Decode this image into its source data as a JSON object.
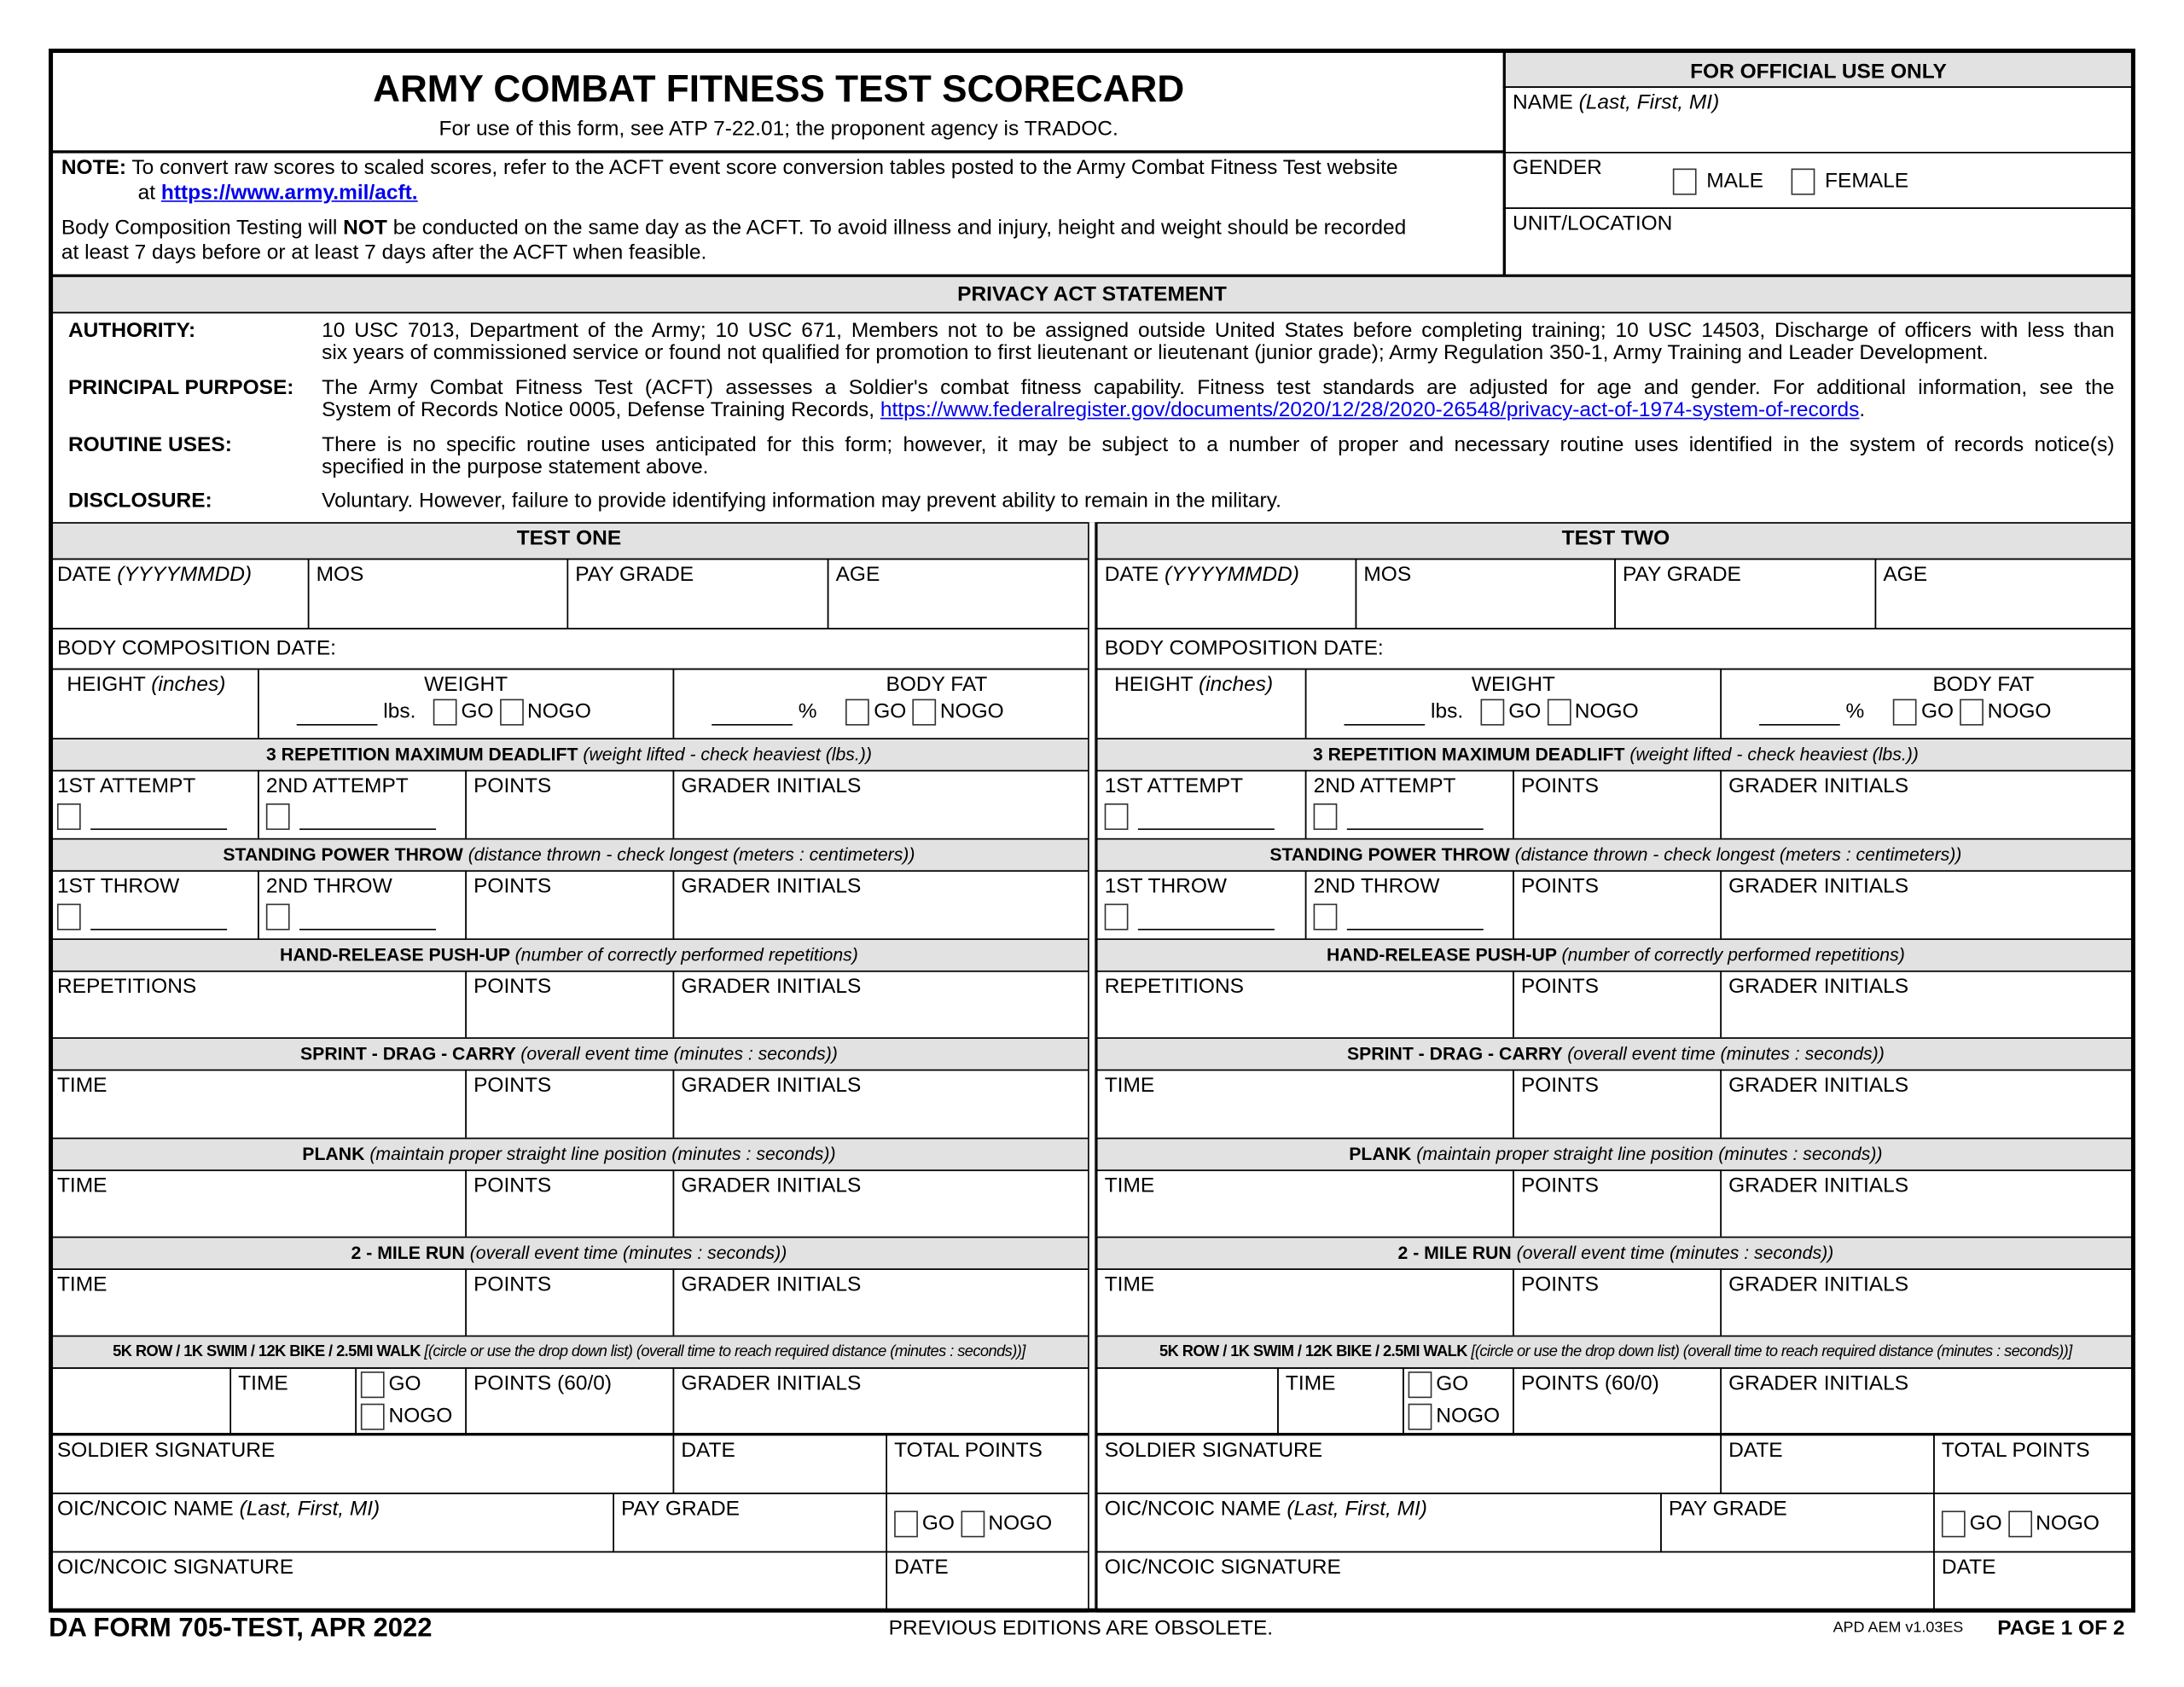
{
  "header": {
    "title": "ARMY COMBAT FITNESS TEST SCORECARD",
    "subtitle": "For use of this form, see ATP 7-22.01; the proponent agency is TRADOC.",
    "official_use": "FOR OFFICIAL USE ONLY",
    "name_label": "NAME",
    "name_hint": "(Last, First, MI)",
    "gender_label": "GENDER",
    "male_label": "MALE",
    "female_label": "FEMALE",
    "unit_label": "UNIT/LOCATION"
  },
  "note": {
    "label": "NOTE:",
    "text": "To convert raw scores to scaled scores, refer to the ACFT event score conversion tables posted to the Army Combat Fitness Test website",
    "at": "at",
    "link": "https://www.army.mil/acft.",
    "body_pre": "Body Composition Testing will",
    "body_bold": "NOT",
    "body_post": "be conducted on the same day as the ACFT. To avoid illness and injury, height and weight should be recorded",
    "body_line2": "at least 7 days before or at least 7 days after the ACFT when feasible."
  },
  "privacy": {
    "title": "PRIVACY ACT STATEMENT",
    "items": [
      {
        "label": "AUTHORITY:",
        "line1": "10 USC 7013, Department of the Army; 10 USC 671, Members not to be assigned outside United States before completing training; 10 USC 14503, Discharge of officers with less than",
        "line2": "six years of commissioned service or found not qualified for promotion to first lieutenant or lieutenant (junior grade); Army Regulation 350-1, Army Training and Leader Development."
      },
      {
        "label": "PRINCIPAL PURPOSE:",
        "line1": "The Army Combat Fitness Test (ACFT) assesses a Soldier's combat fitness capability. Fitness test standards are adjusted for age and gender. For additional information, see the",
        "line2": "System of Records Notice 0005, Defense Training Records,",
        "link": "https://www.federalregister.gov/documents/2020/12/28/2020-26548/privacy-act-of-1974-system-of-records"
      },
      {
        "label": "ROUTINE USES:",
        "line1": "There is no specific routine uses anticipated for this form; however, it may be subject to a number of proper and necessary routine uses identified in the system of records notice(s)",
        "line2": "specified in the purpose statement above."
      },
      {
        "label": "DISCLOSURE:",
        "line1": "Voluntary.  However, failure to provide identifying information may prevent ability to remain in the military.",
        "line2": ""
      }
    ]
  },
  "tests": [
    {
      "title": "TEST ONE"
    },
    {
      "title": "TEST TWO"
    }
  ],
  "labels": {
    "date": "DATE",
    "date_hint": "(YYYYMMDD)",
    "mos": "MOS",
    "pay_grade": "PAY GRADE",
    "age": "AGE",
    "bc_date": "BODY COMPOSITION DATE:",
    "height": "HEIGHT",
    "height_hint": "(inches)",
    "weight": "WEIGHT",
    "lbs": "lbs.",
    "body_fat": "BODY FAT",
    "pct": "%",
    "go": "GO",
    "nogo": "NOGO",
    "deadlift": "3 REPETITION MAXIMUM DEADLIFT",
    "deadlift_hint": "(weight lifted - check heaviest (lbs.))",
    "attempt1": "1ST ATTEMPT",
    "attempt2": "2ND ATTEMPT",
    "points": "POINTS",
    "grader": "GRADER INITIALS",
    "spt": "STANDING POWER THROW",
    "spt_hint": "(distance thrown - check longest (meters : centimeters))",
    "throw1": "1ST THROW",
    "throw2": "2ND THROW",
    "hrp": "HAND-RELEASE PUSH-UP",
    "hrp_hint": "(number of correctly performed repetitions)",
    "reps": "REPETITIONS",
    "sdc": "SPRINT - DRAG - CARRY",
    "sdc_hint": "(overall event time (minutes : seconds))",
    "time": "TIME",
    "plank": "PLANK",
    "plank_hint": "(maintain proper straight line position (minutes : seconds))",
    "run": "2 - MILE RUN",
    "run_hint": "(overall event time (minutes : seconds))",
    "alt": "5K ROW / 1K SWIM / 12K BIKE / 2.5MI WALK",
    "alt_hint": "[(circle or use the drop down list) (overall time to reach required distance (minutes : seconds))]",
    "points_alt": "POINTS (60/0)",
    "soldier_sig": "SOLDIER SIGNATURE",
    "sig_date": "DATE",
    "total_points": "TOTAL POINTS",
    "oic_name": "OIC/NCOIC NAME",
    "oic_hint": "(Last, First, MI)",
    "oic_pay": "PAY GRADE",
    "oic_sig": "OIC/NCOIC SIGNATURE"
  },
  "footer": {
    "form": "DA FORM 705-TEST, APR 2022",
    "obsolete": "PREVIOUS EDITIONS ARE OBSOLETE.",
    "version": "APD AEM v1.03ES",
    "page": "PAGE 1 OF 2"
  }
}
